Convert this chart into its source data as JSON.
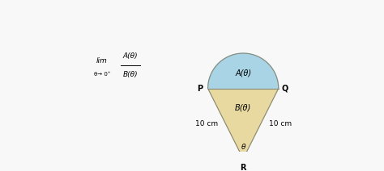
{
  "semicircle_color": "#a8d4e6",
  "triangle_color": "#e8d9a0",
  "edge_color": "#888877",
  "bg_color": "#f8f8f8",
  "label_P": "P",
  "label_Q": "Q",
  "label_R": "R",
  "label_A": "A(θ)",
  "label_B": "B(θ)",
  "label_10left": "10 cm",
  "label_10right": "10 cm",
  "label_theta": "θ",
  "lim_text": "lim",
  "lim_sub": "θ→ 0⁺",
  "frac_top": "A(θ)",
  "frac_bot": "B(θ)",
  "figsize": [
    4.74,
    2.12
  ],
  "dpi": 100
}
